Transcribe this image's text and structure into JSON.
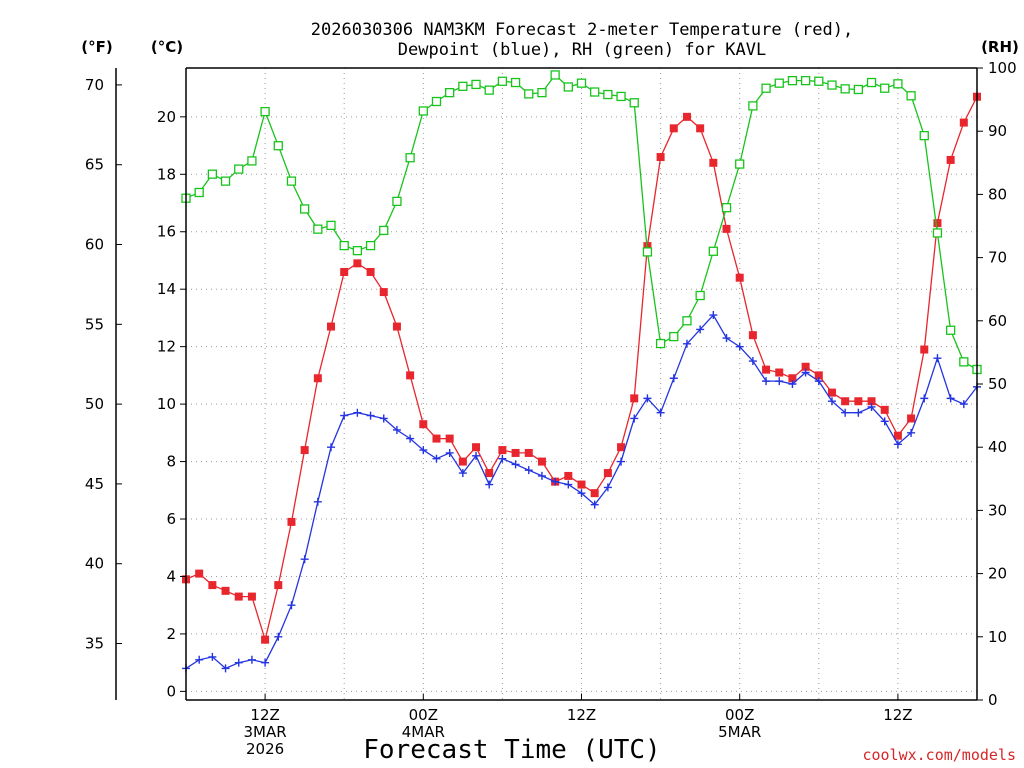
{
  "chart_data": {
    "type": "line",
    "title_lines": [
      "2026030306 NAM3KM Forecast 2-meter Temperature (red),",
      "Dewpoint (blue), RH (green) for KAVL"
    ],
    "xlabel": "Forecast Time (UTC)",
    "credit": "coolwx.com/models",
    "axes": {
      "fahrenheit": {
        "label": "(°F)",
        "ticks": [
          35,
          40,
          45,
          50,
          55,
          60,
          65,
          70
        ]
      },
      "celsius": {
        "label": "(°C)",
        "ylim": [
          -0.3,
          21.7
        ],
        "ticks": [
          0,
          2,
          4,
          6,
          8,
          10,
          12,
          14,
          16,
          18,
          20
        ]
      },
      "rh": {
        "label": "(RH)",
        "ylim": [
          0,
          100
        ],
        "ticks": [
          0,
          10,
          20,
          30,
          40,
          50,
          60,
          70,
          80,
          90,
          100
        ]
      }
    },
    "x_range": [
      0,
      60
    ],
    "x_ticks": [
      {
        "hour": 6,
        "lines": [
          "12Z",
          "3MAR",
          "2026"
        ]
      },
      {
        "hour": 18,
        "lines": [
          "00Z",
          "4MAR"
        ]
      },
      {
        "hour": 30,
        "lines": [
          "12Z"
        ]
      },
      {
        "hour": 42,
        "lines": [
          "00Z",
          "5MAR"
        ]
      },
      {
        "hour": 54,
        "lines": [
          "12Z"
        ]
      }
    ],
    "series": [
      {
        "name": "Temperature",
        "unit": "°C",
        "color": "#e8262d",
        "marker": "filled-square",
        "values": [
          3.9,
          4.1,
          3.7,
          3.5,
          3.3,
          3.3,
          1.8,
          3.7,
          5.9,
          8.4,
          10.9,
          12.7,
          14.6,
          14.9,
          14.6,
          13.9,
          12.7,
          11.0,
          9.3,
          8.8,
          8.8,
          8.0,
          8.5,
          7.6,
          8.4,
          8.3,
          8.3,
          8.0,
          7.3,
          7.5,
          7.2,
          6.9,
          7.6,
          8.5,
          10.2,
          15.5,
          18.6,
          19.6,
          20.0,
          19.6,
          18.4,
          16.1,
          14.4,
          12.4,
          11.2,
          11.1,
          10.9,
          11.3,
          11.0,
          10.4,
          10.1,
          10.1,
          10.1,
          9.8,
          8.9,
          9.5,
          11.9,
          16.3,
          18.5,
          19.8,
          20.7
        ]
      },
      {
        "name": "Dewpoint",
        "unit": "°C",
        "color": "#2434e0",
        "marker": "plus",
        "values": [
          0.8,
          1.1,
          1.2,
          0.8,
          1.0,
          1.1,
          1.0,
          1.9,
          3.0,
          4.6,
          6.6,
          8.5,
          9.6,
          9.7,
          9.6,
          9.5,
          9.1,
          8.8,
          8.4,
          8.1,
          8.3,
          7.6,
          8.2,
          7.2,
          8.1,
          7.9,
          7.7,
          7.5,
          7.3,
          7.2,
          6.9,
          6.5,
          7.1,
          8.0,
          9.5,
          10.2,
          9.7,
          10.9,
          12.1,
          12.6,
          13.1,
          12.3,
          12.0,
          11.5,
          10.8,
          10.8,
          10.7,
          11.1,
          10.8,
          10.1,
          9.7,
          9.7,
          9.9,
          9.4,
          8.6,
          9.0,
          10.2,
          11.6,
          10.2,
          10.0,
          10.6
        ]
      },
      {
        "name": "RH",
        "unit": "%",
        "color": "#18c41c",
        "marker": "open-square",
        "values": [
          79.4,
          80.3,
          83.2,
          82.1,
          84.0,
          85.3,
          93.1,
          87.7,
          82.1,
          77.7,
          74.5,
          75.1,
          71.9,
          71.1,
          71.9,
          74.3,
          78.9,
          85.8,
          93.2,
          94.7,
          96.1,
          97.1,
          97.4,
          96.5,
          97.9,
          97.7,
          95.9,
          96.1,
          98.9,
          97.0,
          97.6,
          96.2,
          95.8,
          95.5,
          94.5,
          70.9,
          56.4,
          57.5,
          60.0,
          64.0,
          71.0,
          77.9,
          84.8,
          94.0,
          96.8,
          97.6,
          98.0,
          98.0,
          97.9,
          97.3,
          96.7,
          96.6,
          97.7,
          96.8,
          97.5,
          95.6,
          89.3,
          73.9,
          58.5,
          53.5,
          52.3
        ]
      }
    ],
    "grid": "dotted"
  }
}
